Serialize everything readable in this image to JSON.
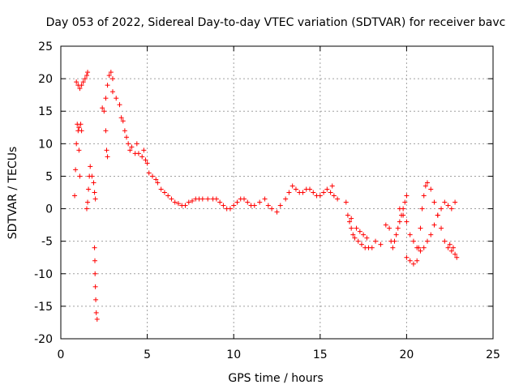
{
  "chart_data": {
    "type": "scatter",
    "title": "Day 053 of 2022, Sidereal Day-to-day VTEC variation (SDTVAR) for receiver bavc",
    "xlabel": "GPS time / hours",
    "ylabel": "SDTVAR / TECUs",
    "xlim": [
      0,
      25
    ],
    "ylim": [
      -20,
      25
    ],
    "xticks": [
      0,
      5,
      10,
      15,
      20,
      25
    ],
    "yticks": [
      -20,
      -15,
      -10,
      -5,
      0,
      5,
      10,
      15,
      20,
      25
    ],
    "grid": true,
    "marker": "+",
    "color": "#ff0000",
    "series": [
      {
        "name": "SDTVAR",
        "points": [
          [
            0.8,
            2.0
          ],
          [
            0.85,
            6.0
          ],
          [
            0.9,
            10.0
          ],
          [
            0.95,
            13.0
          ],
          [
            1.0,
            12.0
          ],
          [
            1.05,
            9.0
          ],
          [
            1.1,
            5.0
          ],
          [
            0.9,
            19.5
          ],
          [
            1.0,
            19.0
          ],
          [
            1.1,
            18.5
          ],
          [
            1.2,
            19.0
          ],
          [
            1.3,
            19.5
          ],
          [
            1.4,
            20.0
          ],
          [
            1.5,
            20.5
          ],
          [
            1.55,
            21.0
          ],
          [
            1.05,
            12.5
          ],
          [
            1.15,
            13.0
          ],
          [
            1.2,
            12.0
          ],
          [
            1.5,
            0.0
          ],
          [
            1.55,
            1.0
          ],
          [
            1.6,
            3.0
          ],
          [
            1.65,
            5.0
          ],
          [
            1.7,
            6.5
          ],
          [
            1.8,
            5.0
          ],
          [
            1.9,
            4.0
          ],
          [
            1.95,
            2.5
          ],
          [
            2.0,
            1.5
          ],
          [
            1.95,
            -6.0
          ],
          [
            1.97,
            -8.0
          ],
          [
            1.98,
            -10.0
          ],
          [
            2.0,
            -12.0
          ],
          [
            2.02,
            -14.0
          ],
          [
            2.05,
            -16.0
          ],
          [
            2.1,
            -17.0
          ],
          [
            2.4,
            15.5
          ],
          [
            2.5,
            15.0
          ],
          [
            2.6,
            12.0
          ],
          [
            2.65,
            9.0
          ],
          [
            2.7,
            8.0
          ],
          [
            2.6,
            17.0
          ],
          [
            2.7,
            19.0
          ],
          [
            2.8,
            20.5
          ],
          [
            2.9,
            21.0
          ],
          [
            3.0,
            20.0
          ],
          [
            3.0,
            18.0
          ],
          [
            3.2,
            17.0
          ],
          [
            3.4,
            16.0
          ],
          [
            3.5,
            14.0
          ],
          [
            3.6,
            13.5
          ],
          [
            3.7,
            12.0
          ],
          [
            3.8,
            11.0
          ],
          [
            3.9,
            10.0
          ],
          [
            4.0,
            9.0
          ],
          [
            4.1,
            9.5
          ],
          [
            4.3,
            8.5
          ],
          [
            4.5,
            8.5
          ],
          [
            4.7,
            8.0
          ],
          [
            4.9,
            7.5
          ],
          [
            5.0,
            7.0
          ],
          [
            4.4,
            10.0
          ],
          [
            4.8,
            9.0
          ],
          [
            5.1,
            5.5
          ],
          [
            5.3,
            5.0
          ],
          [
            5.5,
            4.5
          ],
          [
            5.6,
            4.0
          ],
          [
            5.8,
            3.0
          ],
          [
            6.0,
            2.5
          ],
          [
            6.2,
            2.0
          ],
          [
            6.4,
            1.5
          ],
          [
            6.6,
            1.0
          ],
          [
            6.8,
            0.8
          ],
          [
            7.0,
            0.5
          ],
          [
            7.2,
            0.5
          ],
          [
            7.4,
            1.0
          ],
          [
            7.6,
            1.2
          ],
          [
            7.8,
            1.5
          ],
          [
            8.0,
            1.5
          ],
          [
            8.2,
            1.5
          ],
          [
            8.5,
            1.5
          ],
          [
            8.8,
            1.5
          ],
          [
            9.0,
            1.5
          ],
          [
            9.2,
            1.0
          ],
          [
            9.4,
            0.5
          ],
          [
            9.6,
            0.0
          ],
          [
            9.8,
            0.0
          ],
          [
            10.0,
            0.5
          ],
          [
            10.2,
            1.0
          ],
          [
            10.4,
            1.5
          ],
          [
            10.6,
            1.5
          ],
          [
            10.8,
            1.0
          ],
          [
            11.0,
            0.5
          ],
          [
            11.2,
            0.5
          ],
          [
            11.5,
            1.0
          ],
          [
            11.8,
            1.5
          ],
          [
            12.0,
            0.5
          ],
          [
            12.2,
            0.0
          ],
          [
            12.5,
            -0.5
          ],
          [
            12.7,
            0.5
          ],
          [
            13.0,
            1.5
          ],
          [
            13.2,
            2.5
          ],
          [
            13.4,
            3.5
          ],
          [
            13.6,
            3.0
          ],
          [
            13.8,
            2.5
          ],
          [
            14.0,
            2.5
          ],
          [
            14.2,
            3.0
          ],
          [
            14.4,
            3.0
          ],
          [
            14.6,
            2.5
          ],
          [
            14.8,
            2.0
          ],
          [
            15.0,
            2.0
          ],
          [
            15.2,
            2.5
          ],
          [
            15.4,
            3.0
          ],
          [
            15.6,
            2.5
          ],
          [
            15.8,
            2.0
          ],
          [
            16.0,
            1.5
          ],
          [
            15.7,
            3.5
          ],
          [
            16.5,
            1.0
          ],
          [
            16.6,
            -1.0
          ],
          [
            16.7,
            -2.0
          ],
          [
            16.8,
            -3.0
          ],
          [
            16.9,
            -4.0
          ],
          [
            17.0,
            -4.5
          ],
          [
            17.2,
            -5.0
          ],
          [
            17.4,
            -5.5
          ],
          [
            17.6,
            -6.0
          ],
          [
            17.8,
            -6.0
          ],
          [
            18.0,
            -6.0
          ],
          [
            16.8,
            -1.5
          ],
          [
            17.1,
            -3.0
          ],
          [
            17.3,
            -3.5
          ],
          [
            17.5,
            -4.0
          ],
          [
            17.7,
            -4.5
          ],
          [
            18.2,
            -5.0
          ],
          [
            18.5,
            -5.5
          ],
          [
            18.8,
            -2.5
          ],
          [
            19.0,
            -3.0
          ],
          [
            19.1,
            -5.0
          ],
          [
            19.2,
            -6.0
          ],
          [
            19.3,
            -5.0
          ],
          [
            19.4,
            -4.0
          ],
          [
            19.5,
            -3.0
          ],
          [
            19.6,
            -2.0
          ],
          [
            19.7,
            -1.0
          ],
          [
            19.8,
            0.0
          ],
          [
            19.9,
            1.0
          ],
          [
            20.0,
            2.0
          ],
          [
            19.6,
            0.0
          ],
          [
            19.8,
            -1.0
          ],
          [
            20.0,
            -2.0
          ],
          [
            20.2,
            -4.0
          ],
          [
            20.4,
            -5.0
          ],
          [
            20.6,
            -6.0
          ],
          [
            20.8,
            -6.5
          ],
          [
            21.0,
            -6.0
          ],
          [
            21.2,
            -5.0
          ],
          [
            21.4,
            -4.0
          ],
          [
            21.6,
            -2.5
          ],
          [
            21.8,
            -1.0
          ],
          [
            22.0,
            0.0
          ],
          [
            22.2,
            1.0
          ],
          [
            22.4,
            0.5
          ],
          [
            22.6,
            0.0
          ],
          [
            22.8,
            1.0
          ],
          [
            20.0,
            -7.5
          ],
          [
            20.2,
            -8.0
          ],
          [
            20.4,
            -8.5
          ],
          [
            20.6,
            -8.0
          ],
          [
            20.7,
            -6.0
          ],
          [
            20.8,
            -3.0
          ],
          [
            20.9,
            0.0
          ],
          [
            21.0,
            2.0
          ],
          [
            21.1,
            3.5
          ],
          [
            21.2,
            4.0
          ],
          [
            21.4,
            3.0
          ],
          [
            21.6,
            1.0
          ],
          [
            21.8,
            -1.0
          ],
          [
            22.0,
            -3.0
          ],
          [
            22.2,
            -5.0
          ],
          [
            22.4,
            -6.0
          ],
          [
            22.6,
            -6.5
          ],
          [
            22.8,
            -7.0
          ],
          [
            22.9,
            -7.5
          ],
          [
            22.5,
            -5.5
          ],
          [
            22.7,
            -6.0
          ]
        ]
      }
    ]
  }
}
